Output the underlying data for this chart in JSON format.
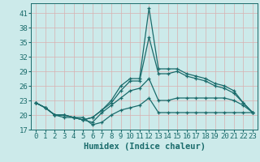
{
  "xlabel": "Humidex (Indice chaleur)",
  "ylabel": "",
  "bg_color": "#cceaea",
  "grid_color": "#b0d8d8",
  "line_color": "#1a6b6b",
  "xlim": [
    -0.5,
    23.5
  ],
  "ylim": [
    17,
    43
  ],
  "yticks": [
    17,
    20,
    23,
    26,
    29,
    32,
    35,
    38,
    41
  ],
  "xticks": [
    0,
    1,
    2,
    3,
    4,
    5,
    6,
    7,
    8,
    9,
    10,
    11,
    12,
    13,
    14,
    15,
    16,
    17,
    18,
    19,
    20,
    21,
    22,
    23
  ],
  "lines": [
    {
      "x": [
        0,
        1,
        2,
        3,
        4,
        5,
        6,
        7,
        8,
        9,
        10,
        11,
        12,
        13,
        14,
        15,
        16,
        17,
        18,
        19,
        20,
        21,
        22,
        23
      ],
      "y": [
        22.5,
        21.5,
        20.0,
        20.0,
        19.5,
        19.0,
        19.5,
        21.0,
        23.0,
        26.0,
        27.5,
        27.5,
        42.0,
        29.5,
        29.5,
        29.5,
        28.5,
        28.0,
        27.5,
        26.5,
        26.0,
        25.0,
        22.5,
        20.5
      ]
    },
    {
      "x": [
        0,
        1,
        2,
        3,
        4,
        5,
        6,
        7,
        8,
        9,
        10,
        11,
        12,
        13,
        14,
        15,
        16,
        17,
        18,
        19,
        20,
        21,
        22,
        23
      ],
      "y": [
        22.5,
        21.5,
        20.0,
        20.0,
        19.5,
        19.0,
        19.5,
        21.0,
        22.5,
        25.0,
        27.0,
        27.0,
        36.0,
        28.5,
        28.5,
        29.0,
        28.0,
        27.5,
        27.0,
        26.0,
        25.5,
        24.5,
        22.5,
        20.5
      ]
    },
    {
      "x": [
        0,
        1,
        2,
        3,
        4,
        5,
        6,
        7,
        8,
        9,
        10,
        11,
        12,
        13,
        14,
        15,
        16,
        17,
        18,
        19,
        20,
        21,
        22,
        23
      ],
      "y": [
        22.5,
        21.5,
        20.0,
        20.0,
        19.5,
        19.0,
        18.5,
        20.5,
        22.0,
        23.5,
        25.0,
        25.5,
        27.5,
        23.0,
        23.0,
        23.5,
        23.5,
        23.5,
        23.5,
        23.5,
        23.5,
        23.0,
        22.0,
        20.5
      ]
    },
    {
      "x": [
        0,
        1,
        2,
        3,
        4,
        5,
        6,
        7,
        8,
        9,
        10,
        11,
        12,
        13,
        14,
        15,
        16,
        17,
        18,
        19,
        20,
        21,
        22,
        23
      ],
      "y": [
        22.5,
        21.5,
        20.0,
        19.5,
        19.5,
        19.5,
        18.0,
        18.5,
        20.0,
        21.0,
        21.5,
        22.0,
        23.5,
        20.5,
        20.5,
        20.5,
        20.5,
        20.5,
        20.5,
        20.5,
        20.5,
        20.5,
        20.5,
        20.5
      ]
    }
  ],
  "tick_fontsize": 6.5,
  "label_fontsize": 7.5
}
